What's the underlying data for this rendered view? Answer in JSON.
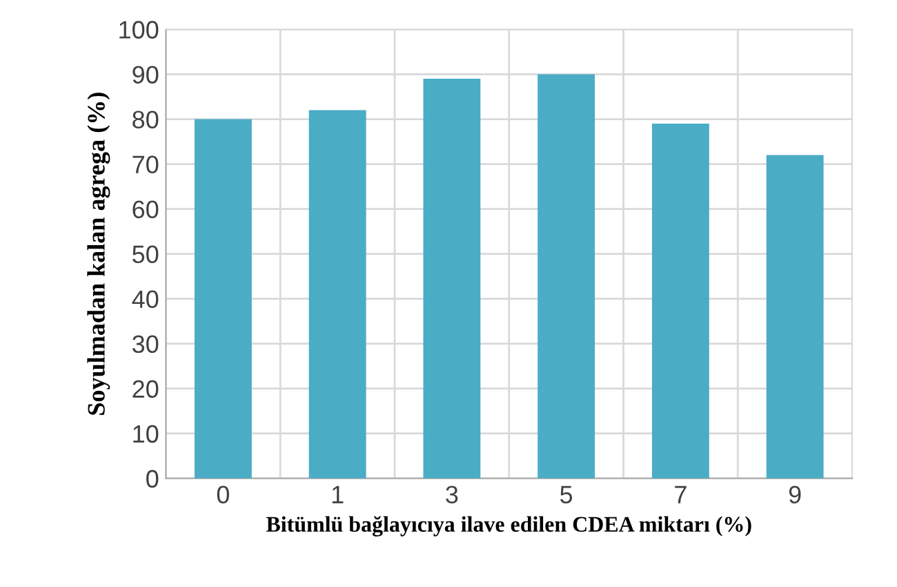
{
  "chart_data": {
    "type": "bar",
    "xlabel": "Bitümlü bağlayıcıya ilave edilen CDEA miktarı (%)",
    "ylabel": "Soyulmadan kalan agrega (%)",
    "categories": [
      "0",
      "1",
      "3",
      "5",
      "7",
      "9"
    ],
    "values": [
      80,
      82,
      89,
      90,
      79,
      72
    ],
    "color": "#4bacc6",
    "ylim": [
      0,
      100
    ],
    "yticks": [
      0,
      10,
      20,
      30,
      40,
      50,
      60,
      70,
      80,
      90,
      100
    ],
    "grid": true
  }
}
